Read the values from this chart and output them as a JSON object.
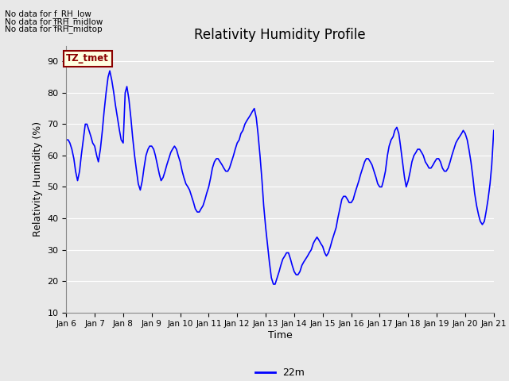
{
  "title": "Relativity Humidity Profile",
  "xlabel": "Time",
  "ylabel": "Relativity Humidity (%)",
  "ylim": [
    10,
    95
  ],
  "yticks": [
    10,
    20,
    30,
    40,
    50,
    60,
    70,
    80,
    90
  ],
  "line_color": "#0000FF",
  "line_width": 1.2,
  "legend_label": "22m",
  "bg_color": "#E8E8E8",
  "annotations": [
    "No data for f_RH_low",
    "No data for f̅RH̅_midlow",
    "No data for f̅RH̅_midtop"
  ],
  "tz_label": "TZ_tmet",
  "x_start": 6.0,
  "x_end": 21.0,
  "xtick_labels": [
    "Jan 6",
    "Jan 7",
    "Jan 8",
    "Jan 9",
    "Jan 10",
    "Jan 11",
    "Jan 12",
    "Jan 13",
    "Jan 14",
    "Jan 15",
    "Jan 16",
    "Jan 17",
    "Jan 18",
    "Jan 19",
    "Jan 20",
    "Jan 21"
  ],
  "xtick_positions": [
    6,
    7,
    8,
    9,
    10,
    11,
    12,
    13,
    14,
    15,
    16,
    17,
    18,
    19,
    20,
    21
  ],
  "x_values": [
    6.0,
    6.07,
    6.13,
    6.2,
    6.27,
    6.33,
    6.4,
    6.47,
    6.53,
    6.6,
    6.67,
    6.73,
    6.8,
    6.87,
    6.93,
    7.0,
    7.07,
    7.13,
    7.2,
    7.27,
    7.33,
    7.4,
    7.47,
    7.53,
    7.6,
    7.67,
    7.73,
    7.8,
    7.87,
    7.93,
    8.0,
    8.07,
    8.13,
    8.2,
    8.27,
    8.33,
    8.4,
    8.47,
    8.53,
    8.6,
    8.67,
    8.73,
    8.8,
    8.87,
    8.93,
    9.0,
    9.07,
    9.13,
    9.2,
    9.27,
    9.33,
    9.4,
    9.47,
    9.53,
    9.6,
    9.67,
    9.73,
    9.8,
    9.87,
    9.93,
    10.0,
    10.07,
    10.13,
    10.2,
    10.27,
    10.33,
    10.4,
    10.47,
    10.53,
    10.6,
    10.67,
    10.73,
    10.8,
    10.87,
    10.93,
    11.0,
    11.07,
    11.13,
    11.2,
    11.27,
    11.33,
    11.4,
    11.47,
    11.53,
    11.6,
    11.67,
    11.73,
    11.8,
    11.87,
    11.93,
    12.0,
    12.07,
    12.13,
    12.2,
    12.27,
    12.33,
    12.4,
    12.47,
    12.53,
    12.6,
    12.67,
    12.73,
    12.8,
    12.87,
    12.93,
    13.0,
    13.07,
    13.13,
    13.2,
    13.27,
    13.33,
    13.4,
    13.47,
    13.53,
    13.6,
    13.67,
    13.73,
    13.8,
    13.87,
    13.93,
    14.0,
    14.07,
    14.13,
    14.2,
    14.27,
    14.33,
    14.4,
    14.47,
    14.53,
    14.6,
    14.67,
    14.73,
    14.8,
    14.87,
    14.93,
    15.0,
    15.07,
    15.13,
    15.2,
    15.27,
    15.33,
    15.4,
    15.47,
    15.53,
    15.6,
    15.67,
    15.73,
    15.8,
    15.87,
    15.93,
    16.0,
    16.07,
    16.13,
    16.2,
    16.27,
    16.33,
    16.4,
    16.47,
    16.53,
    16.6,
    16.67,
    16.73,
    16.8,
    16.87,
    16.93,
    17.0,
    17.07,
    17.13,
    17.2,
    17.27,
    17.33,
    17.4,
    17.47,
    17.53,
    17.6,
    17.67,
    17.73,
    17.8,
    17.87,
    17.93,
    18.0,
    18.07,
    18.13,
    18.2,
    18.27,
    18.33,
    18.4,
    18.47,
    18.53,
    18.6,
    18.67,
    18.73,
    18.8,
    18.87,
    18.93,
    19.0,
    19.07,
    19.13,
    19.2,
    19.27,
    19.33,
    19.4,
    19.47,
    19.53,
    19.6,
    19.67,
    19.73,
    19.8,
    19.87,
    19.93,
    20.0,
    20.07,
    20.13,
    20.2,
    20.27,
    20.33,
    20.4,
    20.47,
    20.53,
    20.6,
    20.67,
    20.73,
    20.8,
    20.87,
    20.93,
    21.0
  ],
  "y_values": [
    65,
    65,
    64,
    62,
    59,
    55,
    52,
    55,
    60,
    65,
    70,
    70,
    68,
    66,
    64,
    63,
    60,
    58,
    62,
    68,
    74,
    80,
    85,
    87,
    84,
    80,
    76,
    72,
    68,
    65,
    64,
    80,
    82,
    78,
    72,
    66,
    60,
    55,
    51,
    49,
    52,
    56,
    60,
    62,
    63,
    63,
    62,
    60,
    57,
    54,
    52,
    53,
    55,
    57,
    59,
    61,
    62,
    63,
    62,
    60,
    58,
    55,
    53,
    51,
    50,
    49,
    47,
    45,
    43,
    42,
    42,
    43,
    44,
    46,
    48,
    50,
    53,
    56,
    58,
    59,
    59,
    58,
    57,
    56,
    55,
    55,
    56,
    58,
    60,
    62,
    64,
    65,
    67,
    68,
    70,
    71,
    72,
    73,
    74,
    75,
    72,
    67,
    60,
    52,
    44,
    37,
    31,
    26,
    21,
    19,
    19,
    21,
    23,
    25,
    27,
    28,
    29,
    29,
    27,
    25,
    23,
    22,
    22,
    23,
    25,
    26,
    27,
    28,
    29,
    30,
    32,
    33,
    34,
    33,
    32,
    31,
    29,
    28,
    29,
    31,
    33,
    35,
    37,
    40,
    43,
    46,
    47,
    47,
    46,
    45,
    45,
    46,
    48,
    50,
    52,
    54,
    56,
    58,
    59,
    59,
    58,
    57,
    55,
    53,
    51,
    50,
    50,
    52,
    55,
    60,
    63,
    65,
    66,
    68,
    69,
    67,
    63,
    58,
    53,
    50,
    52,
    55,
    58,
    60,
    61,
    62,
    62,
    61,
    60,
    58,
    57,
    56,
    56,
    57,
    58,
    59,
    59,
    58,
    56,
    55,
    55,
    56,
    58,
    60,
    62,
    64,
    65,
    66,
    67,
    68,
    67,
    65,
    62,
    58,
    53,
    48,
    44,
    41,
    39,
    38,
    39,
    42,
    46,
    51,
    57,
    68
  ]
}
